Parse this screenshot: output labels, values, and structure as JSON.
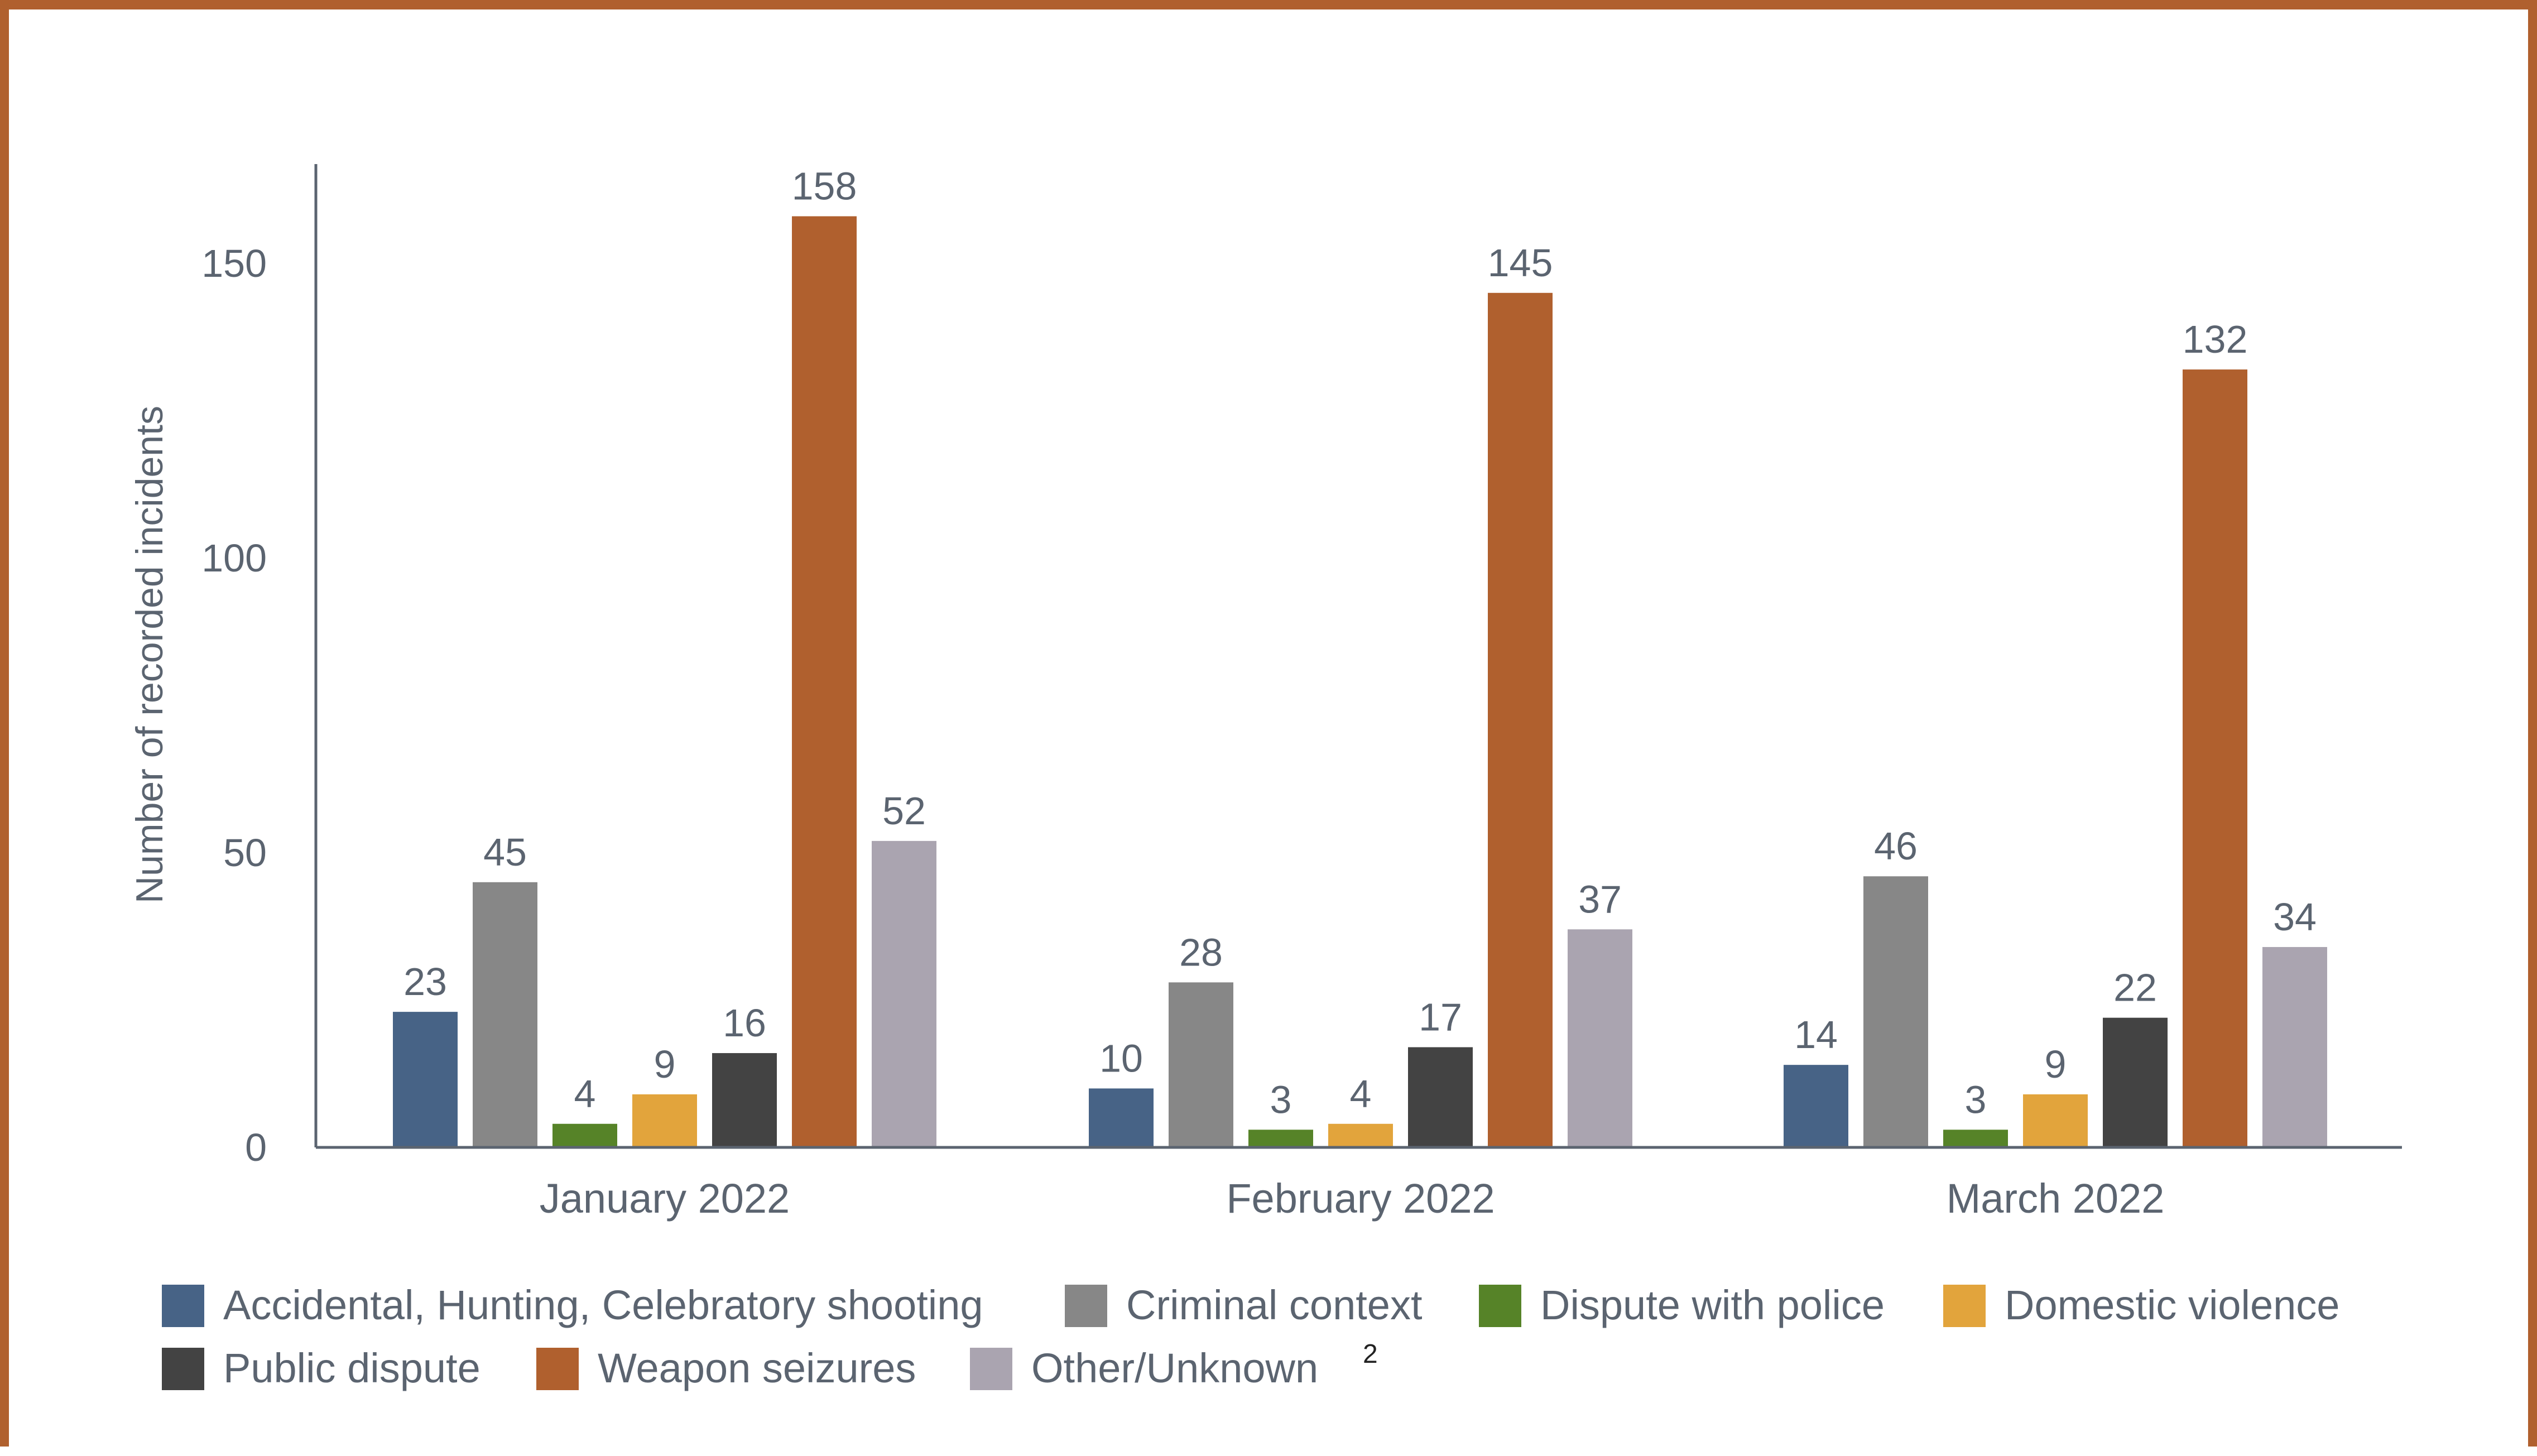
{
  "chart_data": {
    "type": "bar",
    "title": "",
    "xlabel": "",
    "ylabel": "Number of recorded incidents",
    "ylim": [
      0,
      165
    ],
    "yticks": [
      0,
      50,
      100,
      150
    ],
    "grid": false,
    "legend_position": "bottom",
    "data_labels": true,
    "categories": [
      "January 2022",
      "February 2022",
      "March 2022"
    ],
    "series": [
      {
        "name": "Accidental, Hunting, Celebratory shooting",
        "color": "#476386",
        "values": [
          23,
          10,
          14
        ]
      },
      {
        "name": "Criminal context",
        "color": "#878787",
        "values": [
          45,
          28,
          46
        ]
      },
      {
        "name": "Dispute with police",
        "color": "#568328",
        "values": [
          4,
          3,
          3
        ]
      },
      {
        "name": "Domestic violence",
        "color": "#e2a43c",
        "values": [
          9,
          4,
          9
        ]
      },
      {
        "name": "Public dispute",
        "color": "#434343",
        "values": [
          16,
          17,
          22
        ]
      },
      {
        "name": "Weapon seizures",
        "color": "#b0602e",
        "values": [
          158,
          145,
          132
        ]
      },
      {
        "name": "Other/Unknown",
        "color": "#aaa4b0",
        "values": [
          52,
          37,
          34
        ],
        "footnote": "2"
      }
    ]
  }
}
